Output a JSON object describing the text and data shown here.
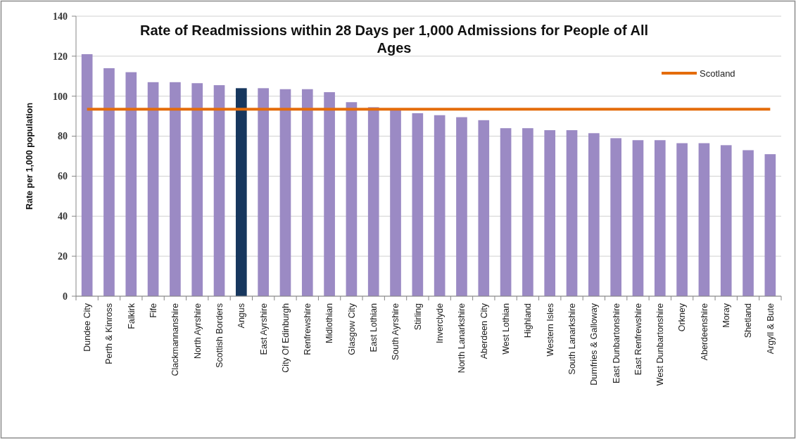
{
  "chart_data": {
    "type": "bar",
    "title": "Rate of Readmissions within 28 Days per 1,000 Admissions for People of All Ages",
    "ylabel": "Rate per 1,000 population",
    "categories": [
      "Dundee City",
      "Perth & Kinross",
      "Falkirk",
      "Fife",
      "Clackmannanshire",
      "North Ayrshire",
      "Scottish Borders",
      "Angus",
      "East Ayrshire",
      "City Of Edinburgh",
      "Renfrewshire",
      "Midlothian",
      "Glasgow City",
      "East Lothian",
      "South Ayrshire",
      "Stirling",
      "Inverclyde",
      "North Lanarkshire",
      "Aberdeen City",
      "West Lothian",
      "Highland",
      "Western Isles",
      "South Lanarkshire",
      "Dumfries & Galloway",
      "East Dunbartonshire",
      "East Renfrewshire",
      "West Dunbartonshire",
      "Orkney",
      "Aberdeenshire",
      "Moray",
      "Shetland",
      "Argyll & Bute"
    ],
    "series": [
      {
        "values": [
          121,
          114,
          112,
          107,
          107,
          106.5,
          105.5,
          104,
          104,
          103.5,
          103.5,
          102,
          97,
          94.5,
          93,
          91.5,
          90.5,
          89.5,
          88,
          84,
          84,
          83,
          83,
          81.5,
          79,
          78,
          78,
          76.5,
          76.5,
          75.5,
          73,
          71
        ],
        "colors": [
          "#9b8ac4",
          "#9b8ac4",
          "#9b8ac4",
          "#9b8ac4",
          "#9b8ac4",
          "#9b8ac4",
          "#9b8ac4",
          "#17375e",
          "#9b8ac4",
          "#9b8ac4",
          "#9b8ac4",
          "#9b8ac4",
          "#9b8ac4",
          "#9b8ac4",
          "#9b8ac4",
          "#9b8ac4",
          "#9b8ac4",
          "#9b8ac4",
          "#9b8ac4",
          "#9b8ac4",
          "#9b8ac4",
          "#9b8ac4",
          "#9b8ac4",
          "#9b8ac4",
          "#9b8ac4",
          "#9b8ac4",
          "#9b8ac4",
          "#9b8ac4",
          "#9b8ac4",
          "#9b8ac4",
          "#9b8ac4",
          "#9b8ac4"
        ]
      },
      {
        "type": "line",
        "name": "Scotland",
        "color": "#e46c0a",
        "values": [
          93.5,
          93.5,
          93.5,
          93.5,
          93.5,
          93.5,
          93.5,
          93.5,
          93.5,
          93.5,
          93.5,
          93.5,
          93.5,
          93.5,
          93.5,
          93.5,
          93.5,
          93.5,
          93.5,
          93.5,
          93.5,
          93.5,
          93.5,
          93.5,
          93.5,
          93.5,
          93.5,
          93.5,
          93.5,
          93.5,
          93.5,
          93.5
        ]
      }
    ],
    "ylim": [
      0,
      140
    ],
    "yticks": [
      0,
      20,
      40,
      60,
      80,
      100,
      120,
      140
    ],
    "grid": "y",
    "legend": "top right"
  }
}
